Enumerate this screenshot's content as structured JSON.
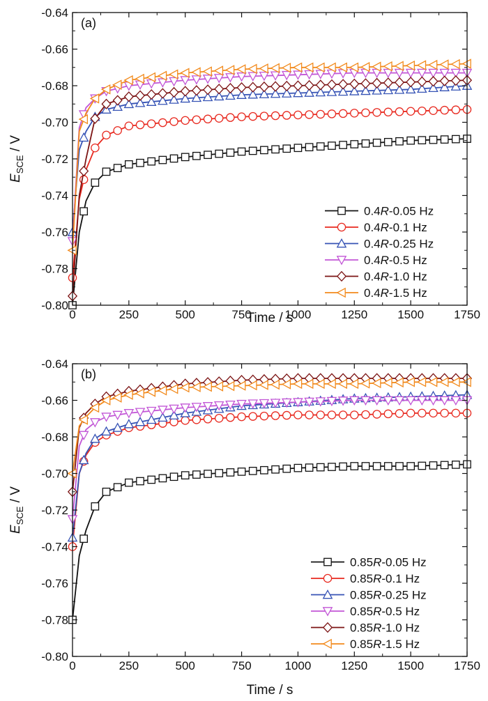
{
  "chart_data": [
    {
      "type": "line",
      "panel_label": "(a)",
      "xlabel": "Time / s",
      "ylabel_main": "E",
      "ylabel_sub": "SCE",
      "ylabel_unit": " / V",
      "xlim": [
        0,
        1750
      ],
      "ylim": [
        -0.8,
        -0.64
      ],
      "xticks": [
        0,
        250,
        500,
        750,
        1000,
        1250,
        1500,
        1750
      ],
      "xtick_labels": [
        "0",
        "250",
        "500",
        "750",
        "1000",
        "1250",
        "1500",
        "1750"
      ],
      "yticks": [
        -0.8,
        -0.78,
        -0.76,
        -0.74,
        -0.72,
        -0.7,
        -0.68,
        -0.66,
        -0.64
      ],
      "ytick_labels": [
        "-0.80",
        "-0.78",
        "-0.76",
        "-0.74",
        "-0.72",
        "-0.70",
        "-0.68",
        "-0.66",
        "-0.64"
      ],
      "legend_position": "lower-right",
      "series": [
        {
          "name_prefix": "0.4",
          "name_R": "R",
          "name_suffix": "-0.05 Hz",
          "color": "#111111",
          "marker": "square",
          "x": [
            0,
            30,
            60,
            100,
            150,
            250,
            500,
            750,
            1000,
            1250,
            1500,
            1750
          ],
          "y": [
            -0.8,
            -0.76,
            -0.743,
            -0.733,
            -0.727,
            -0.723,
            -0.719,
            -0.716,
            -0.714,
            -0.712,
            -0.71,
            -0.709
          ]
        },
        {
          "name_prefix": "0.4",
          "name_R": "R",
          "name_suffix": "-0.1 Hz",
          "color": "#e8281e",
          "marker": "circle",
          "x": [
            0,
            30,
            60,
            100,
            150,
            250,
            500,
            750,
            1000,
            1250,
            1500,
            1750
          ],
          "y": [
            -0.785,
            -0.742,
            -0.726,
            -0.714,
            -0.707,
            -0.702,
            -0.699,
            -0.697,
            -0.696,
            -0.695,
            -0.694,
            -0.693
          ]
        },
        {
          "name_prefix": "0.4",
          "name_R": "R",
          "name_suffix": "-0.25 Hz",
          "color": "#3653b5",
          "marker": "triangle-up",
          "x": [
            0,
            30,
            60,
            100,
            150,
            250,
            500,
            750,
            1000,
            1250,
            1500,
            1750
          ],
          "y": [
            -0.76,
            -0.715,
            -0.705,
            -0.697,
            -0.693,
            -0.69,
            -0.687,
            -0.685,
            -0.684,
            -0.683,
            -0.682,
            -0.68
          ]
        },
        {
          "name_prefix": "0.4",
          "name_R": "R",
          "name_suffix": "-0.5 Hz",
          "color": "#c256d6",
          "marker": "triangle-down",
          "x": [
            0,
            30,
            60,
            100,
            150,
            250,
            500,
            750,
            1000,
            1250,
            1500,
            1750
          ],
          "y": [
            -0.765,
            -0.703,
            -0.692,
            -0.687,
            -0.683,
            -0.68,
            -0.677,
            -0.675,
            -0.674,
            -0.673,
            -0.673,
            -0.673
          ]
        },
        {
          "name_prefix": "0.4",
          "name_R": "R",
          "name_suffix": "-1.0 Hz",
          "color": "#7c1414",
          "marker": "diamond",
          "x": [
            0,
            30,
            60,
            100,
            150,
            250,
            500,
            750,
            1000,
            1250,
            1500,
            1750
          ],
          "y": [
            -0.795,
            -0.74,
            -0.72,
            -0.698,
            -0.69,
            -0.686,
            -0.683,
            -0.681,
            -0.68,
            -0.679,
            -0.678,
            -0.677
          ]
        },
        {
          "name_prefix": "0.4",
          "name_R": "R",
          "name_suffix": "-1.5 Hz",
          "color": "#f28a1c",
          "marker": "triangle-left",
          "x": [
            0,
            30,
            60,
            100,
            150,
            250,
            500,
            750,
            1000,
            1250,
            1500,
            1750
          ],
          "y": [
            -0.77,
            -0.705,
            -0.695,
            -0.687,
            -0.682,
            -0.677,
            -0.673,
            -0.671,
            -0.67,
            -0.67,
            -0.669,
            -0.668
          ]
        }
      ]
    },
    {
      "type": "line",
      "panel_label": "(b)",
      "xlabel": "Time / s",
      "ylabel_main": "E",
      "ylabel_sub": "SCE",
      "ylabel_unit": " / V",
      "xlim": [
        0,
        1750
      ],
      "ylim": [
        -0.8,
        -0.64
      ],
      "xticks": [
        0,
        250,
        500,
        750,
        1000,
        1250,
        1500,
        1750
      ],
      "xtick_labels": [
        "0",
        "250",
        "500",
        "750",
        "1000",
        "1250",
        "1500",
        "1750"
      ],
      "yticks": [
        -0.8,
        -0.78,
        -0.76,
        -0.74,
        -0.72,
        -0.7,
        -0.68,
        -0.66,
        -0.64
      ],
      "ytick_labels": [
        "-0.80",
        "-0.78",
        "-0.76",
        "-0.74",
        "-0.72",
        "-0.70",
        "-0.68",
        "-0.66",
        "-0.64"
      ],
      "legend_position": "lower-right",
      "series": [
        {
          "name_prefix": "0.85",
          "name_R": "R",
          "name_suffix": "-0.05 Hz",
          "color": "#111111",
          "marker": "square",
          "x": [
            0,
            30,
            60,
            100,
            150,
            250,
            500,
            750,
            1000,
            1250,
            1500,
            1750
          ],
          "y": [
            -0.78,
            -0.745,
            -0.731,
            -0.718,
            -0.71,
            -0.705,
            -0.701,
            -0.699,
            -0.697,
            -0.696,
            -0.696,
            -0.695
          ]
        },
        {
          "name_prefix": "0.85",
          "name_R": "R",
          "name_suffix": "-0.1 Hz",
          "color": "#e8281e",
          "marker": "circle",
          "x": [
            0,
            30,
            60,
            100,
            150,
            250,
            500,
            750,
            1000,
            1250,
            1500,
            1750
          ],
          "y": [
            -0.74,
            -0.7,
            -0.69,
            -0.683,
            -0.679,
            -0.675,
            -0.671,
            -0.669,
            -0.668,
            -0.668,
            -0.667,
            -0.667
          ]
        },
        {
          "name_prefix": "0.85",
          "name_R": "R",
          "name_suffix": "-0.25 Hz",
          "color": "#3653b5",
          "marker": "triangle-up",
          "x": [
            0,
            30,
            60,
            100,
            150,
            250,
            500,
            750,
            1000,
            1250,
            1500,
            1750
          ],
          "y": [
            -0.735,
            -0.7,
            -0.689,
            -0.681,
            -0.677,
            -0.673,
            -0.667,
            -0.663,
            -0.661,
            -0.659,
            -0.658,
            -0.657
          ]
        },
        {
          "name_prefix": "0.85",
          "name_R": "R",
          "name_suffix": "-0.5 Hz",
          "color": "#c256d6",
          "marker": "triangle-down",
          "x": [
            0,
            30,
            60,
            100,
            150,
            250,
            500,
            750,
            1000,
            1250,
            1500,
            1750
          ],
          "y": [
            -0.725,
            -0.685,
            -0.676,
            -0.672,
            -0.669,
            -0.667,
            -0.664,
            -0.662,
            -0.661,
            -0.66,
            -0.66,
            -0.66
          ]
        },
        {
          "name_prefix": "0.85",
          "name_R": "R",
          "name_suffix": "-1.0 Hz",
          "color": "#7c1414",
          "marker": "diamond",
          "x": [
            0,
            30,
            60,
            100,
            150,
            250,
            500,
            750,
            1000,
            1250,
            1500,
            1750
          ],
          "y": [
            -0.71,
            -0.675,
            -0.667,
            -0.662,
            -0.658,
            -0.655,
            -0.651,
            -0.649,
            -0.648,
            -0.648,
            -0.648,
            -0.648
          ]
        },
        {
          "name_prefix": "0.85",
          "name_R": "R",
          "name_suffix": "-1.5 Hz",
          "color": "#f28a1c",
          "marker": "triangle-left",
          "x": [
            0,
            30,
            60,
            100,
            150,
            250,
            500,
            750,
            1000,
            1250,
            1500,
            1750
          ],
          "y": [
            -0.7,
            -0.674,
            -0.669,
            -0.664,
            -0.66,
            -0.657,
            -0.653,
            -0.652,
            -0.651,
            -0.651,
            -0.65,
            -0.65
          ]
        }
      ]
    }
  ]
}
